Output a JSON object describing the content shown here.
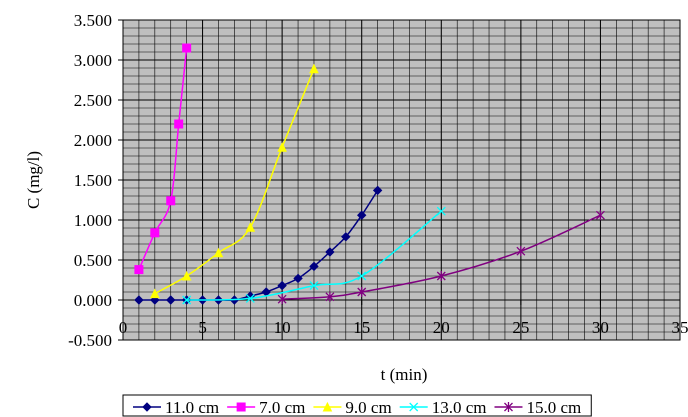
{
  "chart_data": {
    "type": "line",
    "title": "",
    "xlabel": "t (min)",
    "ylabel": "C (mg/l)",
    "xlim": [
      0,
      35
    ],
    "ylim": [
      -0.5,
      3.5
    ],
    "x_ticks": [
      0,
      5,
      10,
      15,
      20,
      25,
      30,
      35
    ],
    "x_tick_labels": [
      "0",
      "5",
      "10",
      "15",
      "20",
      "25",
      "30",
      "35"
    ],
    "y_ticks": [
      -0.5,
      0,
      0.5,
      1,
      1.5,
      2,
      2.5,
      3,
      3.5
    ],
    "y_tick_labels": [
      "-0.500",
      "0.000",
      "0.500",
      "1.000",
      "1.500",
      "2.000",
      "2.500",
      "3.000",
      "3.500"
    ],
    "grid": {
      "major": true,
      "minor": true
    },
    "legend_position": "bottom",
    "series": [
      {
        "name": "11.0 cm",
        "color": "#000080",
        "marker": "diamond",
        "x": [
          1,
          2,
          3,
          4,
          5,
          6,
          7,
          8,
          9,
          10,
          11,
          12,
          13,
          14,
          15,
          16
        ],
        "y": [
          0,
          0,
          0,
          0,
          0,
          0,
          0,
          0.05,
          0.1,
          0.18,
          0.27,
          0.42,
          0.6,
          0.79,
          1.06,
          1.37
        ]
      },
      {
        "name": "7.0 cm",
        "color": "#FF00FF",
        "marker": "square",
        "x": [
          1,
          2,
          3,
          3.5,
          4
        ],
        "y": [
          0.38,
          0.84,
          1.24,
          2.2,
          3.15
        ]
      },
      {
        "name": "9.0 cm",
        "color": "#FFFF00",
        "marker": "triangle",
        "x": [
          2,
          4,
          6,
          8,
          10,
          12
        ],
        "y": [
          0.08,
          0.3,
          0.59,
          0.91,
          1.91,
          2.89
        ]
      },
      {
        "name": "13.0 cm",
        "color": "#00FFFF",
        "marker": "x",
        "x": [
          4,
          8,
          12,
          15,
          20
        ],
        "y": [
          0,
          0.02,
          0.18,
          0.3,
          1.11
        ]
      },
      {
        "name": "15.0 cm",
        "color": "#800080",
        "marker": "asterisk",
        "x": [
          10,
          13,
          15,
          20,
          25,
          30
        ],
        "y": [
          0.01,
          0.04,
          0.1,
          0.3,
          0.61,
          1.06
        ]
      }
    ]
  }
}
